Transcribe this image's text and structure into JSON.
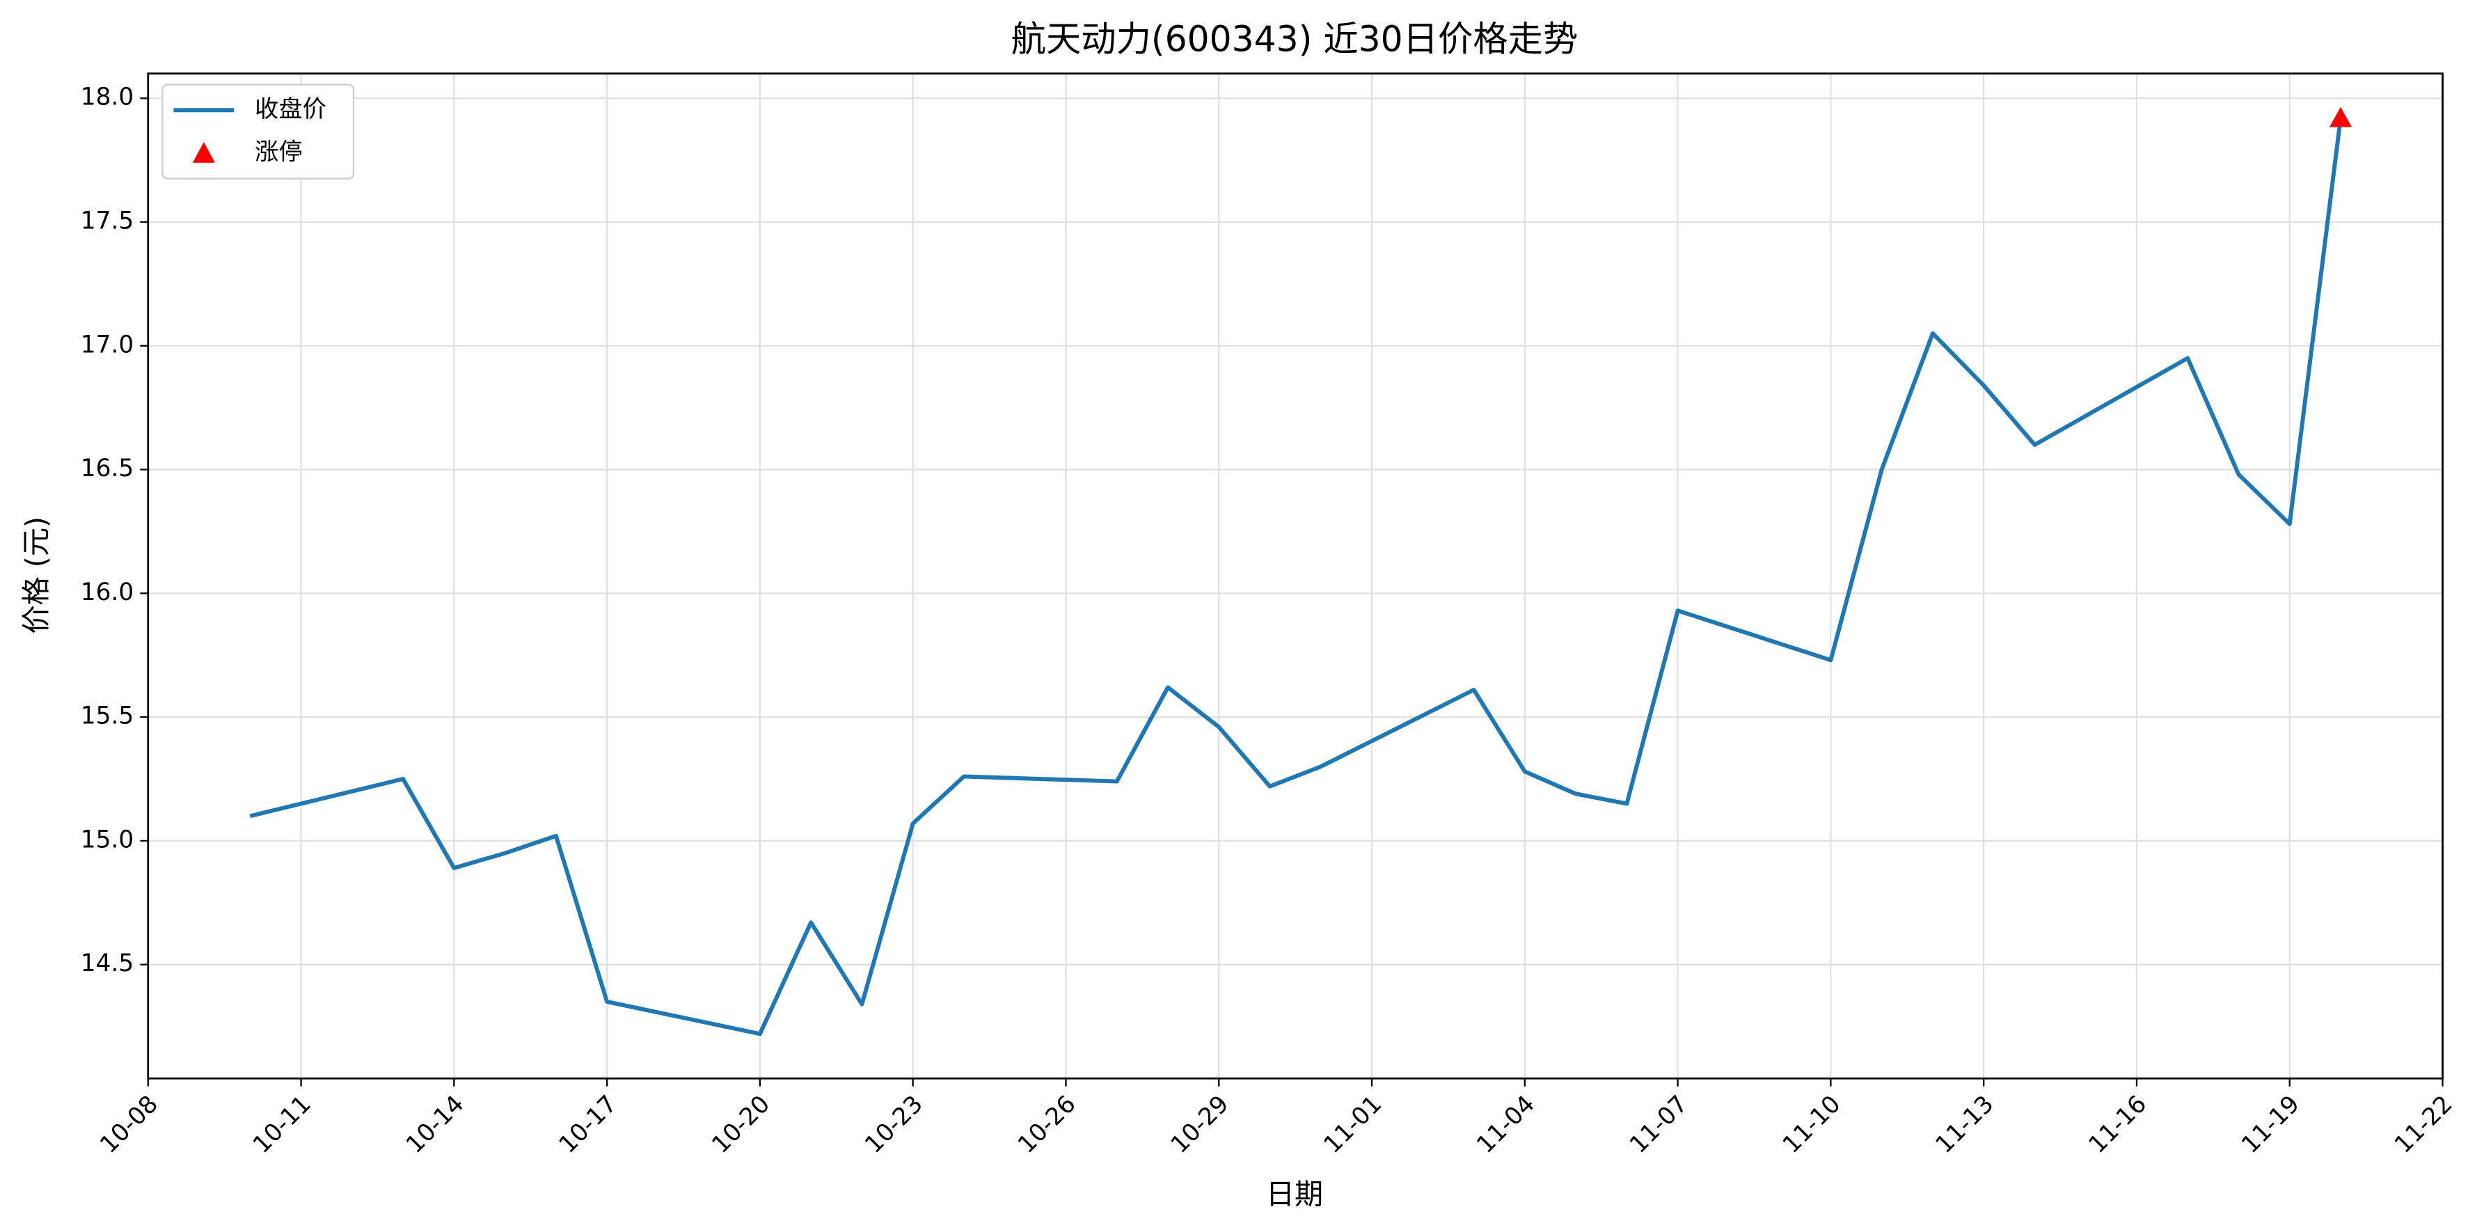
{
  "chart_data": {
    "type": "line",
    "title": "航天动力(600343) 近30日价格走势",
    "x_label": "日期",
    "y_label": "价格 (元)",
    "xlim": [
      "10-08",
      "11-22"
    ],
    "xticks": [
      "10-08",
      "10-11",
      "10-14",
      "10-17",
      "10-20",
      "10-23",
      "10-26",
      "10-29",
      "11-01",
      "11-04",
      "11-07",
      "11-10",
      "11-13",
      "11-16",
      "11-19",
      "11-22"
    ],
    "ylim": [
      14.04,
      18.1
    ],
    "yticks": [
      14.5,
      {
        "value": 15,
        "label": "15.0"
      },
      15.5,
      {
        "value": 16,
        "label": "16.0"
      },
      16.5,
      {
        "value": 17,
        "label": "17.0"
      },
      17.5,
      {
        "value": 18,
        "label": "18.0"
      }
    ],
    "grid": true,
    "legend": "upper left",
    "series": [
      {
        "name": "收盘价",
        "type": "line",
        "color": "#1f77b4",
        "x": [
          "10-10",
          "10-13",
          "10-14",
          "10-15",
          "10-16",
          "10-17",
          "10-20",
          "10-21",
          "10-22",
          "10-23",
          "10-24",
          "10-27",
          "10-28",
          "10-29",
          "10-30",
          "10-31",
          "11-03",
          "11-04",
          "11-05",
          "11-06",
          "11-07",
          "11-10",
          "11-11",
          "11-12",
          "11-13",
          "11-14",
          "11-17",
          "11-18",
          "11-19",
          "11-20"
        ],
        "values": [
          15.1,
          15.25,
          14.89,
          14.95,
          15.02,
          14.35,
          14.22,
          14.67,
          14.34,
          15.07,
          15.26,
          15.24,
          15.62,
          15.46,
          15.22,
          15.3,
          15.61,
          15.28,
          15.19,
          15.15,
          15.93,
          15.73,
          16.5,
          17.05,
          16.84,
          16.6,
          16.95,
          16.48,
          16.28,
          17.92
        ]
      },
      {
        "name": "涨停",
        "type": "scatter",
        "marker": "triangle",
        "color": "#ff0000",
        "x": [
          "11-20"
        ],
        "values": [
          17.92
        ]
      }
    ]
  }
}
